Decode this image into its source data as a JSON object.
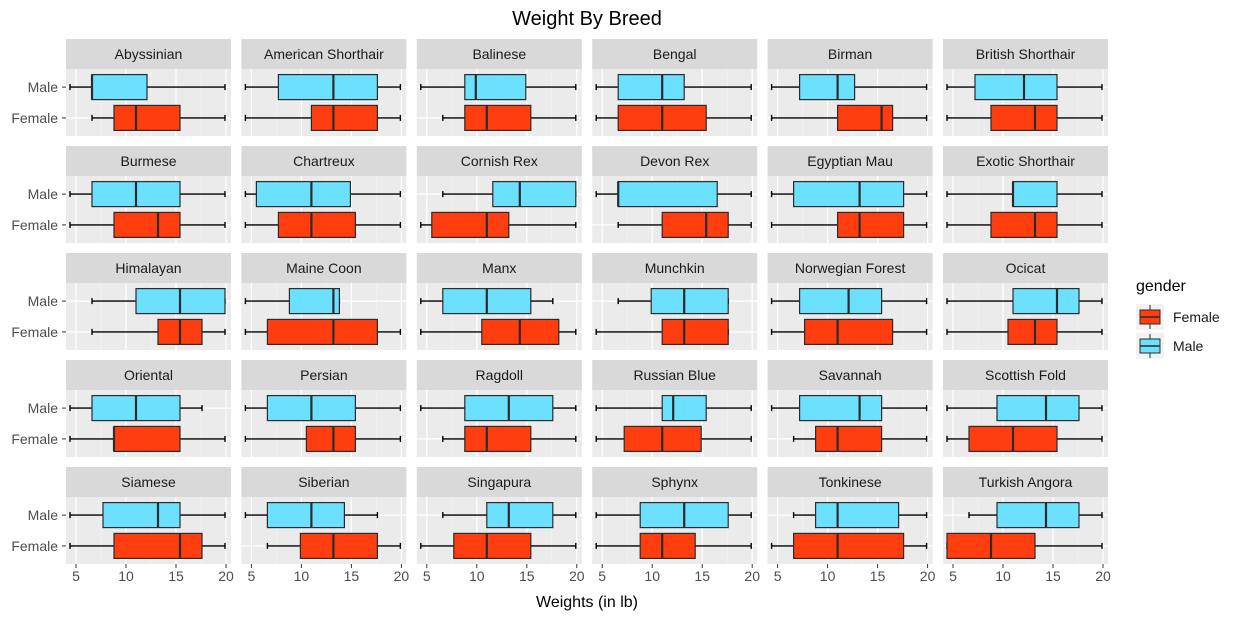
{
  "chart_data": {
    "type": "boxplot",
    "title": "Weight By Breed",
    "xlabel": "Weights (in lb)",
    "ylabel": "",
    "xlim": [
      4,
      20.5
    ],
    "xticks": [
      5,
      10,
      15,
      20
    ],
    "categories": [
      "Male",
      "Female"
    ],
    "grid": true,
    "legend": {
      "title": "gender",
      "position": "right",
      "items": [
        {
          "name": "Female",
          "color": "#FF3D0F"
        },
        {
          "name": "Male",
          "color": "#6CE1FF"
        }
      ]
    },
    "colors": {
      "Female": "#FF3D0F",
      "Male": "#6CE1FF"
    },
    "facets": [
      {
        "breed": "Abyssinian",
        "Male": [
          4.4,
          6.6,
          6.6,
          12.1,
          19.9
        ],
        "Female": [
          6.6,
          8.8,
          11.0,
          15.4,
          19.9
        ]
      },
      {
        "breed": "American Shorthair",
        "Male": [
          4.4,
          7.7,
          13.2,
          17.6,
          19.9
        ],
        "Female": [
          4.4,
          11.0,
          13.2,
          17.6,
          19.9
        ]
      },
      {
        "breed": "Balinese",
        "Male": [
          4.4,
          8.8,
          9.9,
          14.9,
          19.9
        ],
        "Female": [
          6.6,
          8.8,
          11.0,
          15.4,
          19.9
        ]
      },
      {
        "breed": "Bengal",
        "Male": [
          4.4,
          6.6,
          11.0,
          13.2,
          19.9
        ],
        "Female": [
          4.4,
          6.6,
          11.0,
          15.4,
          19.9
        ]
      },
      {
        "breed": "Birman",
        "Male": [
          4.4,
          7.2,
          11.0,
          12.7,
          19.9
        ],
        "Female": [
          4.4,
          11.0,
          15.4,
          16.5,
          19.9
        ]
      },
      {
        "breed": "British Shorthair",
        "Male": [
          4.4,
          7.2,
          12.1,
          15.4,
          19.9
        ],
        "Female": [
          4.4,
          8.8,
          13.2,
          15.4,
          19.9
        ]
      },
      {
        "breed": "Burmese",
        "Male": [
          4.4,
          6.6,
          11.0,
          15.4,
          19.9
        ],
        "Female": [
          4.4,
          8.8,
          13.2,
          15.4,
          19.9
        ]
      },
      {
        "breed": "Chartreux",
        "Male": [
          4.4,
          5.5,
          11.0,
          14.9,
          19.9
        ],
        "Female": [
          4.4,
          7.7,
          11.0,
          15.4,
          19.9
        ]
      },
      {
        "breed": "Cornish Rex",
        "Male": [
          6.6,
          11.6,
          14.3,
          19.9,
          19.9
        ],
        "Female": [
          4.4,
          5.5,
          11.0,
          13.2,
          19.9
        ]
      },
      {
        "breed": "Devon Rex",
        "Male": [
          4.4,
          6.6,
          6.6,
          16.5,
          19.9
        ],
        "Female": [
          6.6,
          11.0,
          15.4,
          17.6,
          19.9
        ]
      },
      {
        "breed": "Egyptian Mau",
        "Male": [
          4.4,
          6.6,
          13.2,
          17.6,
          19.9
        ],
        "Female": [
          4.4,
          11.0,
          13.2,
          17.6,
          19.9
        ]
      },
      {
        "breed": "Exotic Shorthair",
        "Male": [
          4.4,
          11.0,
          11.0,
          15.4,
          19.9
        ],
        "Female": [
          4.4,
          8.8,
          13.2,
          15.4,
          19.9
        ]
      },
      {
        "breed": "Himalayan",
        "Male": [
          6.6,
          11.0,
          15.4,
          19.9,
          19.9
        ],
        "Female": [
          6.6,
          13.2,
          15.4,
          17.6,
          19.9
        ]
      },
      {
        "breed": "Maine Coon",
        "Male": [
          4.4,
          8.8,
          13.2,
          13.8,
          13.8
        ],
        "Female": [
          4.4,
          6.6,
          13.2,
          17.6,
          19.9
        ]
      },
      {
        "breed": "Manx",
        "Male": [
          4.4,
          6.6,
          11.0,
          15.4,
          17.6
        ],
        "Female": [
          4.4,
          10.5,
          14.3,
          18.2,
          19.9
        ]
      },
      {
        "breed": "Munchkin",
        "Male": [
          6.6,
          9.9,
          13.2,
          17.6,
          17.6
        ],
        "Female": [
          4.4,
          11.0,
          13.2,
          17.6,
          17.6
        ]
      },
      {
        "breed": "Norwegian Forest",
        "Male": [
          4.4,
          7.2,
          12.1,
          15.4,
          19.9
        ],
        "Female": [
          4.4,
          7.7,
          11.0,
          16.5,
          19.9
        ]
      },
      {
        "breed": "Ocicat",
        "Male": [
          4.4,
          11.0,
          15.4,
          17.6,
          19.9
        ],
        "Female": [
          4.4,
          10.5,
          13.2,
          15.4,
          19.9
        ]
      },
      {
        "breed": "Oriental",
        "Male": [
          4.4,
          6.6,
          11.0,
          15.4,
          17.6
        ],
        "Female": [
          4.4,
          8.8,
          8.8,
          15.4,
          19.9
        ]
      },
      {
        "breed": "Persian",
        "Male": [
          4.4,
          6.6,
          11.0,
          15.4,
          19.9
        ],
        "Female": [
          4.4,
          10.5,
          13.2,
          15.4,
          19.9
        ]
      },
      {
        "breed": "Ragdoll",
        "Male": [
          4.4,
          8.8,
          13.2,
          17.6,
          19.9
        ],
        "Female": [
          6.6,
          8.8,
          11.0,
          15.4,
          19.9
        ]
      },
      {
        "breed": "Russian Blue",
        "Male": [
          4.4,
          11.0,
          12.1,
          15.4,
          19.9
        ],
        "Female": [
          4.4,
          7.2,
          11.0,
          14.9,
          19.9
        ]
      },
      {
        "breed": "Savannah",
        "Male": [
          4.4,
          7.2,
          13.2,
          15.4,
          19.9
        ],
        "Female": [
          6.6,
          8.8,
          11.0,
          15.4,
          19.9
        ]
      },
      {
        "breed": "Scottish Fold",
        "Male": [
          4.4,
          9.4,
          14.3,
          17.6,
          19.9
        ],
        "Female": [
          4.4,
          6.6,
          11.0,
          15.4,
          19.9
        ]
      },
      {
        "breed": "Siamese",
        "Male": [
          4.4,
          7.7,
          13.2,
          15.4,
          19.9
        ],
        "Female": [
          4.4,
          8.8,
          15.4,
          17.6,
          19.9
        ]
      },
      {
        "breed": "Siberian",
        "Male": [
          4.4,
          6.6,
          11.0,
          14.3,
          17.6
        ],
        "Female": [
          6.6,
          9.9,
          13.2,
          17.6,
          19.9
        ]
      },
      {
        "breed": "Singapura",
        "Male": [
          6.6,
          11.0,
          13.2,
          17.6,
          19.9
        ],
        "Female": [
          4.4,
          7.7,
          11.0,
          15.4,
          19.9
        ]
      },
      {
        "breed": "Sphynx",
        "Male": [
          4.4,
          8.8,
          13.2,
          17.6,
          19.9
        ],
        "Female": [
          4.4,
          8.8,
          11.0,
          14.3,
          19.9
        ]
      },
      {
        "breed": "Tonkinese",
        "Male": [
          6.6,
          8.8,
          11.0,
          17.1,
          19.9
        ],
        "Female": [
          4.4,
          6.6,
          11.0,
          17.6,
          19.9
        ]
      },
      {
        "breed": "Turkish Angora",
        "Male": [
          6.6,
          9.4,
          14.3,
          17.6,
          19.9
        ],
        "Female": [
          4.4,
          4.4,
          8.8,
          13.2,
          19.9
        ]
      }
    ]
  }
}
